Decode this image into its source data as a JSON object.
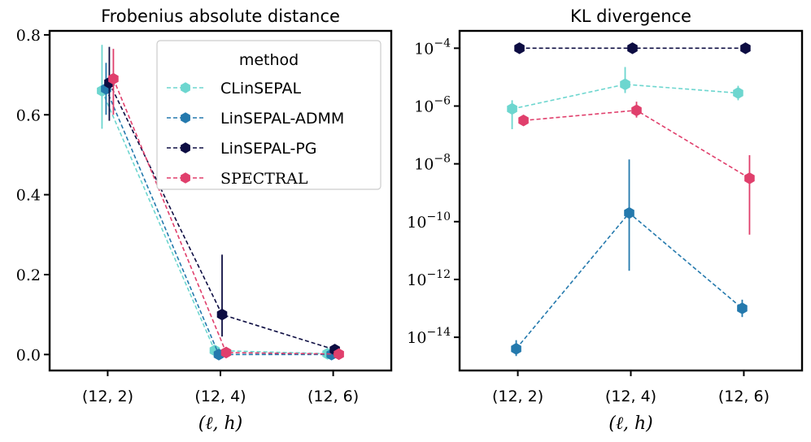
{
  "colors": {
    "CLinSEPAL": "#6dd6cf",
    "LinSEPAL-ADMM": "#2479ad",
    "LinSEPAL-PG": "#0d0d42",
    "SPECTRAL": "#e03f6c"
  },
  "chart_data": [
    {
      "type": "line",
      "title": "Frobenius absolute distance",
      "xlabel": "(ℓ, h)",
      "ylabel": "",
      "categories": [
        "(12, 2)",
        "(12, 4)",
        "(12, 6)"
      ],
      "ylim": [
        -0.04,
        0.81
      ],
      "yticks": [
        0.0,
        0.2,
        0.4,
        0.6,
        0.8
      ],
      "ytick_labels": [
        "0.0",
        "0.2",
        "0.4",
        "0.6",
        "0.8"
      ],
      "yscale": "linear",
      "legend": {
        "title": "method",
        "position": "top-right"
      },
      "series": [
        {
          "name": "CLinSEPAL",
          "values": [
            0.66,
            0.01,
            0.002
          ],
          "err_low": [
            0.565,
            0.0,
            0.0
          ],
          "err_high": [
            0.775,
            0.02,
            0.006
          ]
        },
        {
          "name": "LinSEPAL-ADMM",
          "values": [
            0.665,
            0.0,
            0.0
          ],
          "err_low": [
            0.6,
            0.0,
            0.0
          ],
          "err_high": [
            0.73,
            0.004,
            0.002
          ]
        },
        {
          "name": "LinSEPAL-PG",
          "values": [
            0.68,
            0.1,
            0.012
          ],
          "err_low": [
            0.585,
            0.045,
            0.004
          ],
          "err_high": [
            0.77,
            0.25,
            0.02
          ]
        },
        {
          "name": "SPECTRAL",
          "values": [
            0.69,
            0.005,
            0.001
          ],
          "err_low": [
            0.6,
            0.0,
            0.0
          ],
          "err_high": [
            0.765,
            0.012,
            0.004
          ]
        }
      ]
    },
    {
      "type": "line",
      "title": "KL divergence",
      "xlabel": "(ℓ, h)",
      "ylabel": "",
      "categories": [
        "(12, 2)",
        "(12, 4)",
        "(12, 6)"
      ],
      "yscale": "log",
      "ylim_log10": [
        -15.15,
        -3.4
      ],
      "yticks_exp": [
        -4,
        -6,
        -8,
        -10,
        -12,
        -14
      ],
      "ytick_base": "10",
      "ytick_exponents": [
        "−4",
        "−6",
        "−8",
        "−10",
        "−12",
        "−14"
      ],
      "series": [
        {
          "name": "CLinSEPAL",
          "values_log10": [
            -6.1,
            -5.25,
            -5.55
          ],
          "err_low_log10": [
            -6.8,
            -5.55,
            -5.8
          ],
          "err_high_log10": [
            -5.8,
            -4.65,
            -5.3
          ]
        },
        {
          "name": "LinSEPAL-ADMM",
          "values_log10": [
            -14.4,
            -9.7,
            -13.0
          ],
          "err_low_log10": [
            -14.65,
            -11.7,
            -13.3
          ],
          "err_high_log10": [
            -14.1,
            -7.85,
            -12.7
          ]
        },
        {
          "name": "LinSEPAL-PG",
          "values_log10": [
            -4.0,
            -4.0,
            -4.0
          ],
          "err_low_log10": [
            -4.0,
            -4.0,
            -4.0
          ],
          "err_high_log10": [
            -4.0,
            -4.0,
            -4.0
          ]
        },
        {
          "name": "SPECTRAL",
          "values_log10": [
            -6.5,
            -6.15,
            -8.5
          ],
          "err_low_log10": [
            -6.5,
            -6.4,
            -10.45
          ],
          "err_high_log10": [
            -6.5,
            -5.85,
            -7.7
          ]
        }
      ]
    }
  ]
}
